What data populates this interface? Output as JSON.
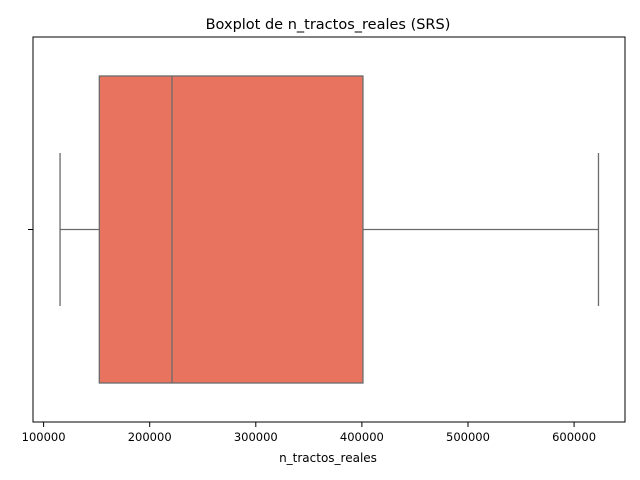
{
  "chart_data": {
    "type": "boxplot",
    "title": "Boxplot de n_tractos_reales (SRS)",
    "xlabel": "n_tractos_reales",
    "ylabel": "",
    "orientation": "horizontal",
    "xlim": [
      90000,
      648000
    ],
    "xticks": [
      100000,
      200000,
      300000,
      400000,
      500000,
      600000
    ],
    "xtick_labels": [
      "100000",
      "200000",
      "300000",
      "400000",
      "500000",
      "600000"
    ],
    "stats": {
      "whisker_low": 115500,
      "q1": 152500,
      "median": 221000,
      "q3": 401000,
      "whisker_high": 623000
    },
    "colors": {
      "box_fill": "#e8735f",
      "line": "#6b6b6b",
      "axis": "#000000"
    },
    "grid": false
  }
}
